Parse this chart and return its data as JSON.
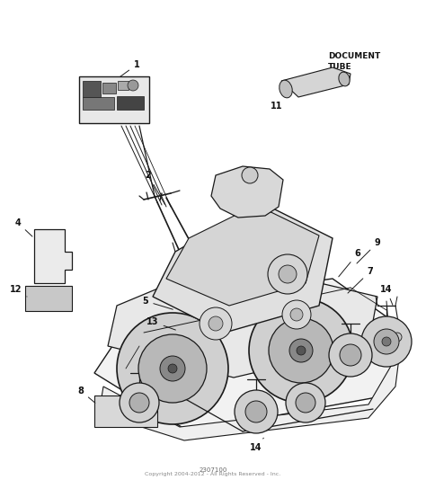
{
  "background_color": "#ffffff",
  "fig_width": 4.74,
  "fig_height": 5.34,
  "dpi": 100,
  "footer_text": "Copyright 2004-2012 - All Rights Reserved - Inc.",
  "footer_text2": "2307100",
  "document_tube_label": "DOCUMENT\nTUBE",
  "line_color": "#1a1a1a",
  "text_color": "#111111",
  "font_size_labels": 7.0,
  "font_size_footer": 4.5,
  "doc_tube_fontsize": 6.5,
  "label_fontweight": "bold"
}
